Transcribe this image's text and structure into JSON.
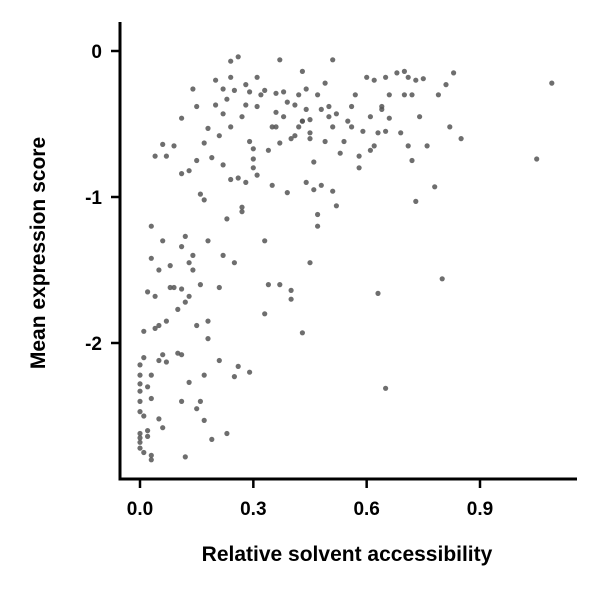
{
  "chart_data": {
    "type": "scatter",
    "title": "",
    "xlabel": "Relative solvent accessibility",
    "ylabel": "Mean expression score",
    "xlim": [
      -0.05,
      1.13
    ],
    "ylim": [
      -2.93,
      0.2
    ],
    "xticks": [
      0.0,
      0.3,
      0.6,
      0.9
    ],
    "xtick_labels": [
      "0.0",
      "0.3",
      "0.6",
      "0.9"
    ],
    "yticks": [
      0,
      -1,
      -2
    ],
    "ytick_labels": [
      "0",
      "-1",
      "-2"
    ],
    "grid": false,
    "legend": "none",
    "point_color": "#555555",
    "points": [
      [
        0.0,
        -2.15
      ],
      [
        0.0,
        -2.22
      ],
      [
        0.0,
        -2.28
      ],
      [
        0.0,
        -2.33
      ],
      [
        0.0,
        -2.4
      ],
      [
        0.0,
        -2.47
      ],
      [
        0.0,
        -2.62
      ],
      [
        0.0,
        -2.65
      ],
      [
        0.0,
        -2.68
      ],
      [
        0.0,
        -2.72
      ],
      [
        0.01,
        -2.1
      ],
      [
        0.01,
        -2.5
      ],
      [
        0.01,
        -2.75
      ],
      [
        0.01,
        -1.92
      ],
      [
        0.02,
        -1.65
      ],
      [
        0.02,
        -2.3
      ],
      [
        0.02,
        -2.64
      ],
      [
        0.02,
        -2.6
      ],
      [
        0.03,
        -2.38
      ],
      [
        0.03,
        -2.8
      ],
      [
        0.03,
        -2.77
      ],
      [
        0.03,
        -2.22
      ],
      [
        0.03,
        -1.42
      ],
      [
        0.03,
        -1.2
      ],
      [
        0.04,
        -1.9
      ],
      [
        0.04,
        -1.68
      ],
      [
        0.04,
        -0.72
      ],
      [
        0.05,
        -2.12
      ],
      [
        0.05,
        -1.5
      ],
      [
        0.05,
        -1.88
      ],
      [
        0.05,
        -2.52
      ],
      [
        0.06,
        -2.08
      ],
      [
        0.06,
        -1.3
      ],
      [
        0.06,
        -0.64
      ],
      [
        0.06,
        -2.58
      ],
      [
        0.07,
        -1.85
      ],
      [
        0.07,
        -2.13
      ],
      [
        0.07,
        -0.72
      ],
      [
        0.08,
        -1.62
      ],
      [
        0.08,
        -1.47
      ],
      [
        0.09,
        -1.62
      ],
      [
        0.09,
        -0.65
      ],
      [
        0.1,
        -1.77
      ],
      [
        0.1,
        -2.07
      ],
      [
        0.11,
        -2.08
      ],
      [
        0.11,
        -1.34
      ],
      [
        0.11,
        -1.63
      ],
      [
        0.11,
        -0.46
      ],
      [
        0.11,
        -0.84
      ],
      [
        0.11,
        -2.4
      ],
      [
        0.12,
        -1.27
      ],
      [
        0.12,
        -1.72
      ],
      [
        0.12,
        -2.78
      ],
      [
        0.13,
        -1.45
      ],
      [
        0.13,
        -1.68
      ],
      [
        0.13,
        -0.82
      ],
      [
        0.13,
        -2.27
      ],
      [
        0.14,
        -1.5
      ],
      [
        0.14,
        -1.4
      ],
      [
        0.14,
        -0.26
      ],
      [
        0.15,
        -0.38
      ],
      [
        0.15,
        -0.75
      ],
      [
        0.15,
        -1.88
      ],
      [
        0.15,
        -2.45
      ],
      [
        0.16,
        -1.6
      ],
      [
        0.16,
        -0.98
      ],
      [
        0.16,
        -2.4
      ],
      [
        0.17,
        -2.53
      ],
      [
        0.17,
        -1.02
      ],
      [
        0.17,
        -0.63
      ],
      [
        0.17,
        -2.22
      ],
      [
        0.18,
        -0.53
      ],
      [
        0.18,
        -1.3
      ],
      [
        0.18,
        -1.85
      ],
      [
        0.18,
        -1.97
      ],
      [
        0.19,
        -2.66
      ],
      [
        0.19,
        -0.73
      ],
      [
        0.2,
        -0.2
      ],
      [
        0.2,
        -0.37
      ],
      [
        0.21,
        -0.58
      ],
      [
        0.21,
        -1.62
      ],
      [
        0.21,
        -2.12
      ],
      [
        0.22,
        -0.78
      ],
      [
        0.22,
        -0.43
      ],
      [
        0.22,
        -0.26
      ],
      [
        0.22,
        -1.4
      ],
      [
        0.23,
        -2.62
      ],
      [
        0.23,
        -0.33
      ],
      [
        0.23,
        -1.15
      ],
      [
        0.24,
        -0.18
      ],
      [
        0.24,
        -0.88
      ],
      [
        0.24,
        -0.52
      ],
      [
        0.24,
        -0.07
      ],
      [
        0.25,
        -2.23
      ],
      [
        0.25,
        -0.27
      ],
      [
        0.25,
        -1.45
      ],
      [
        0.26,
        -0.04
      ],
      [
        0.26,
        -0.87
      ],
      [
        0.26,
        -2.16
      ],
      [
        0.27,
        -0.45
      ],
      [
        0.27,
        -1.07
      ],
      [
        0.27,
        -1.1
      ],
      [
        0.28,
        -0.23
      ],
      [
        0.28,
        -0.9
      ],
      [
        0.28,
        -0.37
      ],
      [
        0.29,
        -0.62
      ],
      [
        0.29,
        -0.28
      ],
      [
        0.29,
        -2.2
      ],
      [
        0.3,
        -0.74
      ],
      [
        0.3,
        -0.8
      ],
      [
        0.3,
        -0.67
      ],
      [
        0.31,
        -0.85
      ],
      [
        0.31,
        -0.18
      ],
      [
        0.31,
        -0.38
      ],
      [
        0.32,
        -0.3
      ],
      [
        0.33,
        -1.8
      ],
      [
        0.33,
        -1.3
      ],
      [
        0.33,
        -0.27
      ],
      [
        0.34,
        -0.68
      ],
      [
        0.34,
        -1.6
      ],
      [
        0.35,
        -0.52
      ],
      [
        0.35,
        -0.92
      ],
      [
        0.36,
        -0.52
      ],
      [
        0.36,
        -0.29
      ],
      [
        0.36,
        -0.42
      ],
      [
        0.37,
        -0.06
      ],
      [
        0.37,
        -0.63
      ],
      [
        0.37,
        -1.6
      ],
      [
        0.38,
        -0.45
      ],
      [
        0.38,
        -0.28
      ],
      [
        0.39,
        -0.35
      ],
      [
        0.39,
        -0.97
      ],
      [
        0.4,
        -0.6
      ],
      [
        0.4,
        -1.64
      ],
      [
        0.4,
        -1.7
      ],
      [
        0.41,
        -0.58
      ],
      [
        0.41,
        -0.37
      ],
      [
        0.42,
        -0.52
      ],
      [
        0.42,
        -0.3
      ],
      [
        0.43,
        -0.48
      ],
      [
        0.43,
        -1.93
      ],
      [
        0.43,
        -0.48
      ],
      [
        0.43,
        -0.14
      ],
      [
        0.44,
        -0.4
      ],
      [
        0.44,
        -0.26
      ],
      [
        0.44,
        -0.9
      ],
      [
        0.45,
        -1.45
      ],
      [
        0.45,
        -0.56
      ],
      [
        0.45,
        -0.47
      ],
      [
        0.45,
        -0.6
      ],
      [
        0.46,
        -0.95
      ],
      [
        0.46,
        -0.76
      ],
      [
        0.47,
        -1.12
      ],
      [
        0.47,
        -0.3
      ],
      [
        0.47,
        -1.2
      ],
      [
        0.48,
        -0.92
      ],
      [
        0.48,
        -0.4
      ],
      [
        0.49,
        -0.22
      ],
      [
        0.49,
        -0.62
      ],
      [
        0.5,
        -0.38
      ],
      [
        0.5,
        -0.45
      ],
      [
        0.51,
        -0.06
      ],
      [
        0.51,
        -0.96
      ],
      [
        0.51,
        -0.52
      ],
      [
        0.52,
        -1.06
      ],
      [
        0.52,
        -0.43
      ],
      [
        0.53,
        -0.7
      ],
      [
        0.54,
        -0.62
      ],
      [
        0.55,
        -0.48
      ],
      [
        0.56,
        -0.38
      ],
      [
        0.56,
        -0.52
      ],
      [
        0.57,
        -0.3
      ],
      [
        0.58,
        -0.72
      ],
      [
        0.58,
        -0.8
      ],
      [
        0.59,
        -0.55
      ],
      [
        0.6,
        -0.18
      ],
      [
        0.61,
        -0.45
      ],
      [
        0.61,
        -0.68
      ],
      [
        0.62,
        -0.2
      ],
      [
        0.62,
        -0.65
      ],
      [
        0.63,
        -1.66
      ],
      [
        0.63,
        -0.56
      ],
      [
        0.64,
        -0.38
      ],
      [
        0.64,
        -0.4
      ],
      [
        0.65,
        -0.18
      ],
      [
        0.65,
        -0.55
      ],
      [
        0.65,
        -2.31
      ],
      [
        0.66,
        -0.46
      ],
      [
        0.66,
        -0.3
      ],
      [
        0.68,
        -0.15
      ],
      [
        0.69,
        -0.56
      ],
      [
        0.7,
        -0.14
      ],
      [
        0.7,
        -0.3
      ],
      [
        0.71,
        -0.65
      ],
      [
        0.71,
        -0.18
      ],
      [
        0.72,
        -0.3
      ],
      [
        0.72,
        -0.75
      ],
      [
        0.73,
        -0.2
      ],
      [
        0.73,
        -1.03
      ],
      [
        0.74,
        -0.45
      ],
      [
        0.75,
        -0.19
      ],
      [
        0.76,
        -0.65
      ],
      [
        0.78,
        -0.93
      ],
      [
        0.79,
        -0.3
      ],
      [
        0.8,
        -1.56
      ],
      [
        0.81,
        -0.23
      ],
      [
        0.82,
        -0.52
      ],
      [
        0.83,
        -0.15
      ],
      [
        0.85,
        -0.6
      ],
      [
        1.05,
        -0.74
      ],
      [
        1.09,
        -0.22
      ]
    ]
  }
}
